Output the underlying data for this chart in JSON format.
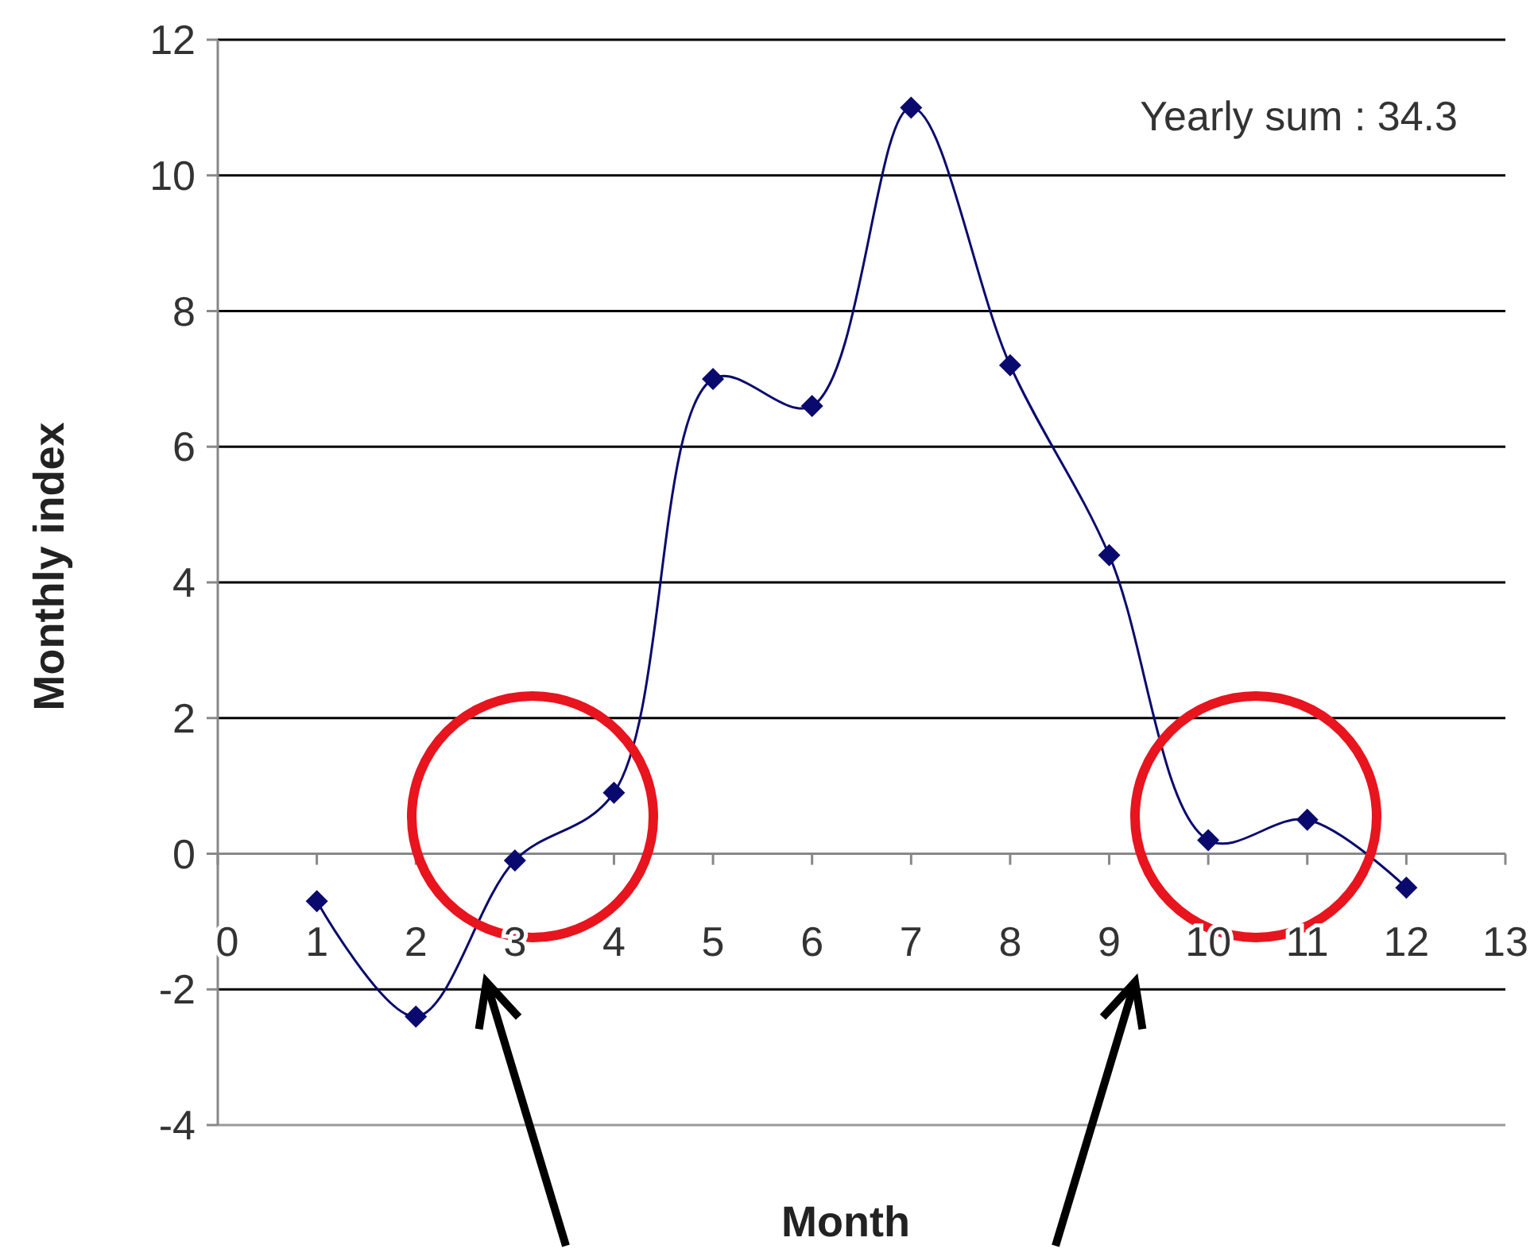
{
  "chart_data": {
    "type": "line",
    "xlabel": "Month",
    "ylabel": "Monthly index",
    "x": [
      1,
      2,
      3,
      4,
      5,
      6,
      7,
      8,
      9,
      10,
      11,
      12
    ],
    "series": [
      {
        "color": "#0a0a6e",
        "values": [
          -0.7,
          -2.4,
          -0.1,
          0.9,
          7.0,
          6.6,
          11.0,
          7.2,
          4.4,
          0.2,
          0.5,
          -0.5
        ]
      }
    ],
    "xlim": [
      0,
      13
    ],
    "xticks": [
      0,
      1,
      2,
      3,
      4,
      5,
      6,
      7,
      8,
      9,
      10,
      11,
      12,
      13
    ],
    "ylim": [
      -4,
      12
    ],
    "yticks": [
      -4,
      -2,
      0,
      2,
      4,
      6,
      8,
      10,
      12
    ],
    "grid": "y",
    "marker": "diamond",
    "line_style": "solid",
    "annotations": [
      "Yearly sum : 34.3"
    ]
  }
}
